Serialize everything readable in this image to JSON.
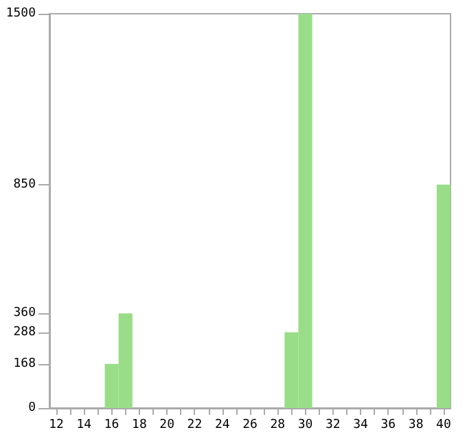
{
  "chart_data": {
    "type": "bar",
    "categories": [
      "12",
      null,
      "14",
      null,
      "16",
      null,
      "18",
      null,
      "20",
      null,
      "22",
      null,
      "24",
      null,
      "26",
      null,
      "28",
      null,
      "30",
      null,
      "32",
      null,
      "34",
      null,
      "36",
      null,
      "38",
      null,
      "40"
    ],
    "values": [
      0,
      0,
      0,
      0,
      168,
      360,
      0,
      0,
      0,
      0,
      0,
      0,
      0,
      0,
      0,
      0,
      0,
      288,
      1500,
      0,
      0,
      0,
      0,
      0,
      0,
      0,
      0,
      0,
      850
    ],
    "color": "#99dd88",
    "ylim": [
      0,
      1500
    ],
    "yticks": [
      0,
      168,
      288,
      360,
      850,
      1500
    ],
    "grid": false
  }
}
